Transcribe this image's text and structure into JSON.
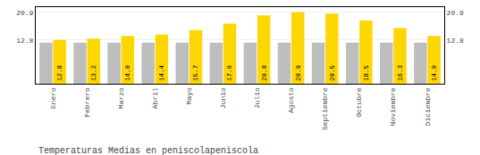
{
  "chart_data": {
    "type": "bar",
    "title": "Temperaturas Medias en peniscolapeniscola",
    "categories": [
      "Enero",
      "Febrero",
      "Marzo",
      "Abril",
      "Mayo",
      "Junio",
      "Julio",
      "Agosto",
      "Septiembre",
      "Octubre",
      "Noviembre",
      "Diciembre"
    ],
    "series": [
      {
        "color": "#BEBEBE",
        "values": [
          12.0,
          12.0,
          12.0,
          12.0,
          12.0,
          12.0,
          12.0,
          12.0,
          12.0,
          12.0,
          12.0,
          12.0
        ]
      },
      {
        "color": "#FFD700",
        "values": [
          12.8,
          13.2,
          14.0,
          14.4,
          15.7,
          17.6,
          20.0,
          20.9,
          20.5,
          18.5,
          16.3,
          14.0
        ],
        "value_labels": [
          "12.8",
          "13.2",
          "14.0",
          "14.4",
          "15.7",
          "17.6",
          "20.0",
          "20.9",
          "20.5",
          "18.5",
          "16.3",
          "14.0"
        ],
        "data_labels": true
      }
    ],
    "ylim": [
      0,
      22.4
    ],
    "yticks": [
      12.8,
      20.9
    ],
    "y2lim": [
      0,
      22.4
    ],
    "y2ticks": [
      12.8,
      20.9
    ],
    "grid": true
  }
}
